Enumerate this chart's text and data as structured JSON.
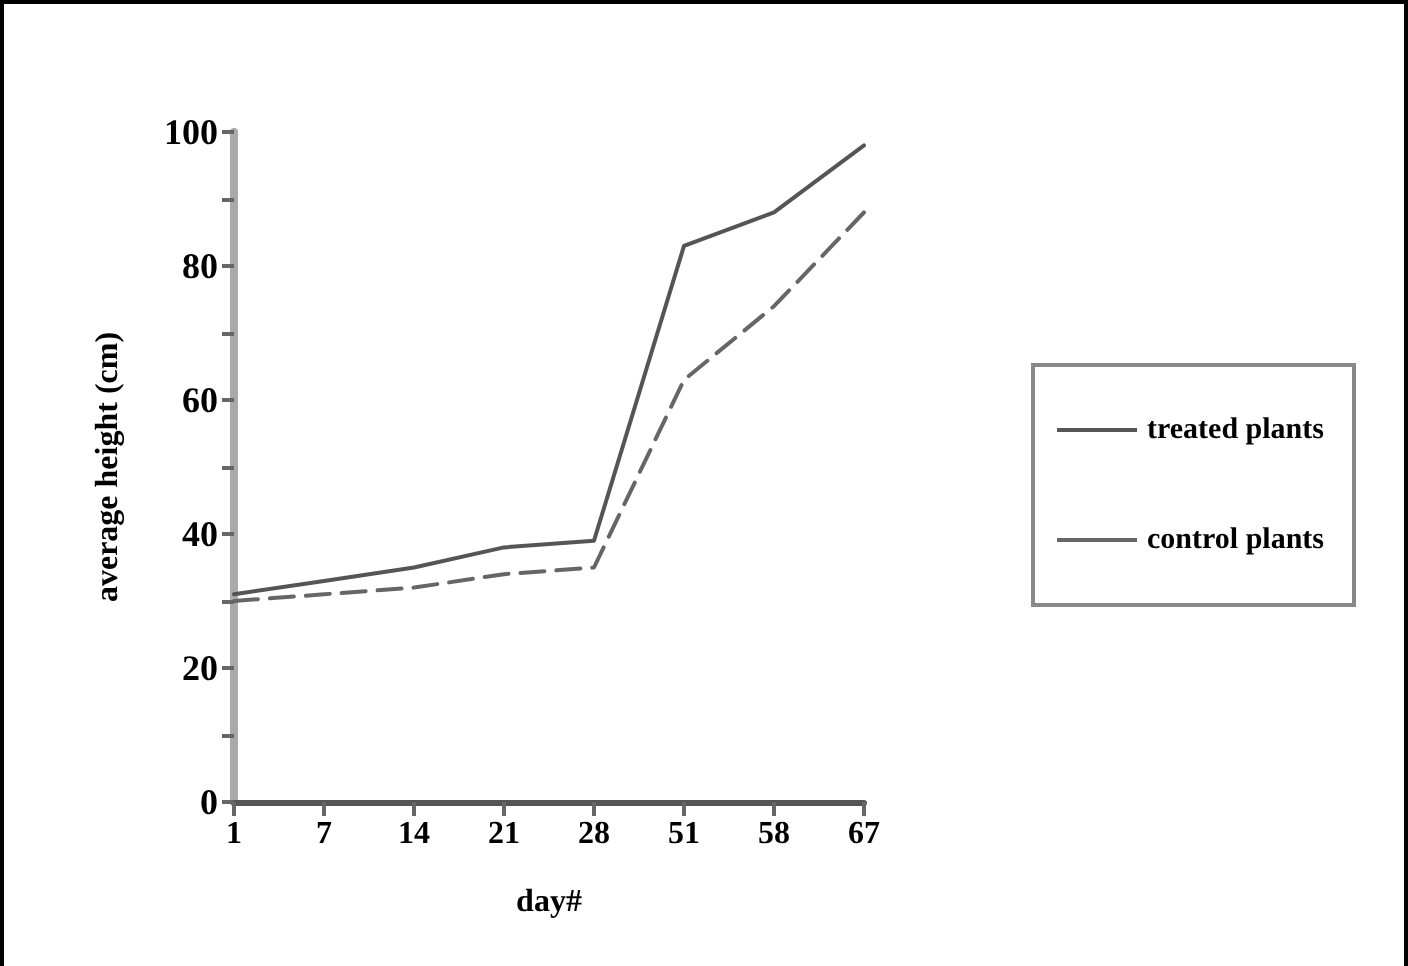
{
  "chart_data": {
    "type": "line",
    "xlabel": "day#",
    "ylabel": "average height (cm)",
    "categories": [
      "1",
      "7",
      "14",
      "21",
      "28",
      "51",
      "58",
      "67"
    ],
    "series": [
      {
        "name": "treated plants",
        "color": "#555555",
        "line_style": "solid",
        "values": [
          31,
          33,
          35,
          38,
          39,
          83,
          88,
          98
        ]
      },
      {
        "name": "control plants",
        "color": "#666666",
        "line_style": "dashed",
        "values": [
          30,
          31,
          32,
          34,
          35,
          63,
          74,
          88
        ]
      }
    ],
    "ylim": [
      0,
      100
    ],
    "yticks": [
      0,
      {
        "value": 10,
        "label": null
      },
      20,
      {
        "value": 30,
        "label": null
      },
      40,
      {
        "value": 50,
        "label": null
      },
      60,
      {
        "value": 70,
        "label": null
      },
      80,
      {
        "value": 90,
        "label": null
      },
      100
    ],
    "grid": false,
    "legend": "right",
    "marker": "none"
  }
}
